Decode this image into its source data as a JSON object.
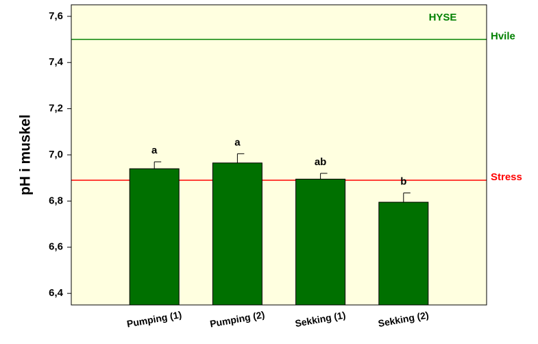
{
  "chart_data": {
    "type": "bar",
    "ylabel": "pH i muskel",
    "annotation": "HYSE",
    "categories": [
      "Pumping (1)",
      "Pumping (2)",
      "Sekking (1)",
      "Sekking (2)"
    ],
    "values": [
      6.94,
      6.965,
      6.895,
      6.795
    ],
    "errors": [
      0.03,
      0.04,
      0.025,
      0.04
    ],
    "significance_labels": [
      "a",
      "a",
      "ab",
      "b"
    ],
    "color": "#007000",
    "background": "#ffffe0",
    "ylim": [
      6.35,
      7.65
    ],
    "yticks": [
      {
        "value": 6.4,
        "label": "6,4"
      },
      {
        "value": 6.6,
        "label": "6,6"
      },
      {
        "value": 6.8,
        "label": "6,8"
      },
      {
        "value": 7.0,
        "label": "7,0"
      },
      {
        "value": 7.2,
        "label": "7,2"
      },
      {
        "value": 7.4,
        "label": "7,4"
      },
      {
        "value": 7.6,
        "label": "7,6"
      }
    ],
    "reference_lines": [
      {
        "name": "Hvile",
        "value": 7.5,
        "color": "#008000"
      },
      {
        "name": "Stress",
        "value": 6.89,
        "color": "#ff0000"
      }
    ]
  }
}
